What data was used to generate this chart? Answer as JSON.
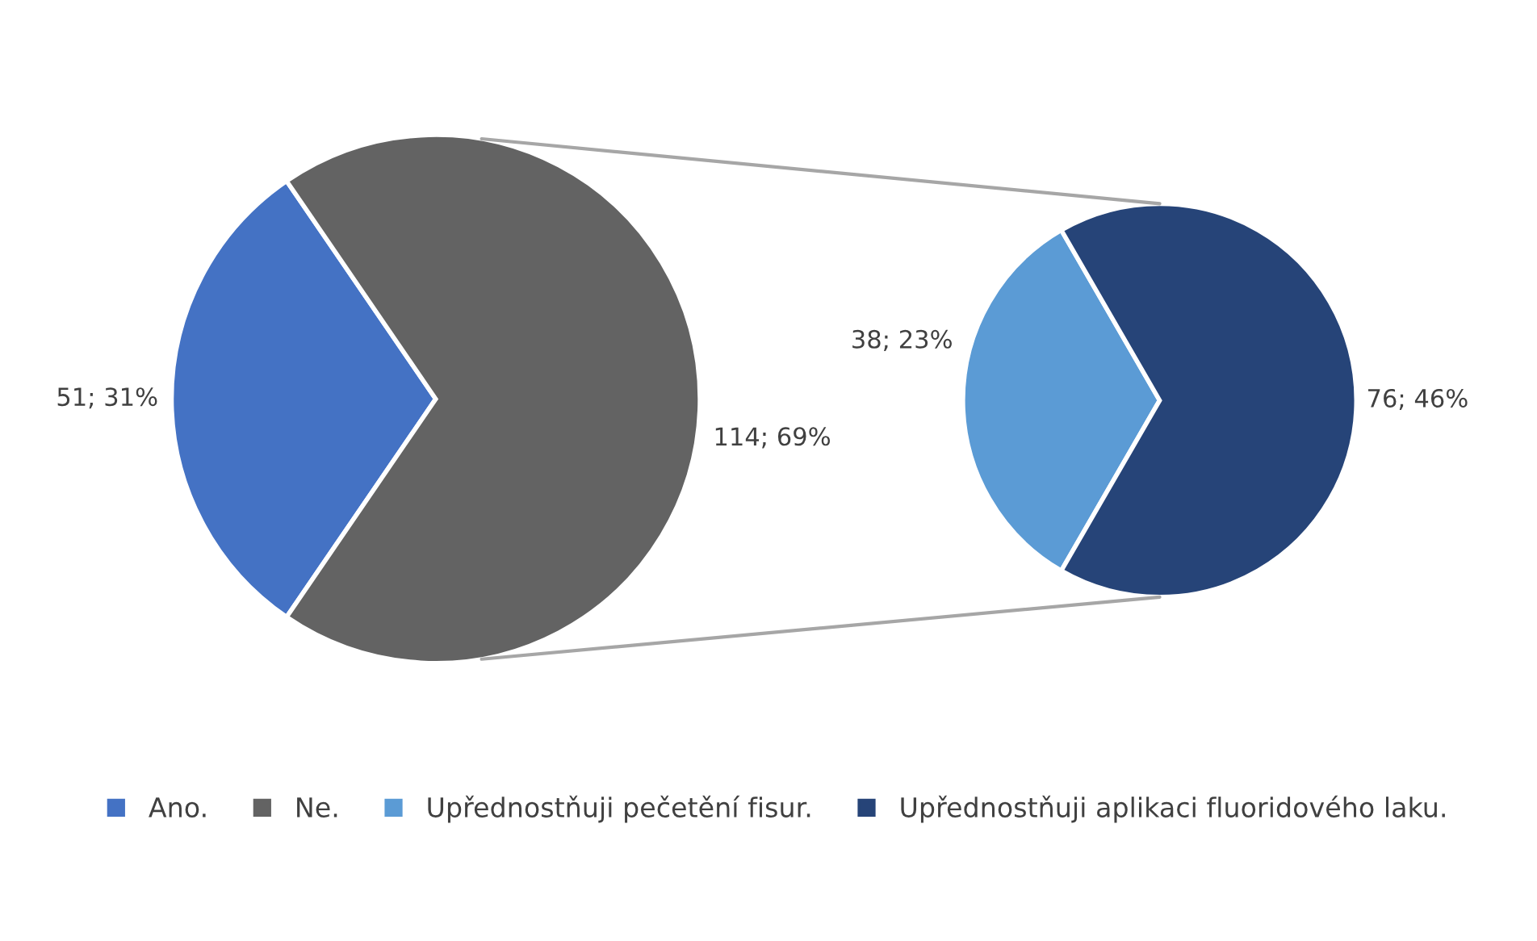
{
  "chart_data": [
    {
      "type": "pie",
      "categories": [
        "Ano.",
        "Ne."
      ],
      "values": [
        51,
        114
      ],
      "colors": [
        "#4472c4",
        "#636363"
      ],
      "value_labels": [
        "51; 31%",
        "114; 69%"
      ],
      "legend": "bottom"
    },
    {
      "type": "pie",
      "categories": [
        "Upřednostňuji pečetění fisur.",
        "Upřednostňuji aplikaci fluoridového laku."
      ],
      "values": [
        38,
        76
      ],
      "colors": [
        "#5b9bd5",
        "#264478"
      ],
      "value_labels": [
        "38; 23%",
        "76; 46%"
      ],
      "legend": "bottom"
    }
  ]
}
